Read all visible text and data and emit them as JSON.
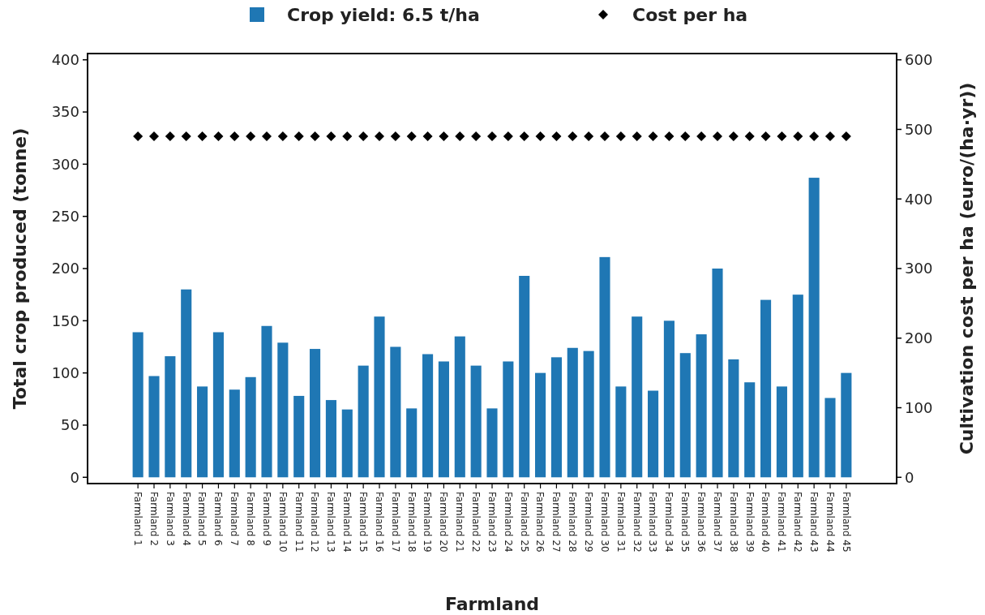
{
  "chart_data": {
    "type": "bar",
    "xlabel": "Farmland",
    "ylabel": "Total crop produced (tonne)",
    "y2label": "Cultivation cost per ha (euro/(ha·yr))",
    "categories": [
      "Farmland 1",
      "Farmland 2",
      "Farmland 3",
      "Farmland 4",
      "Farmland 5",
      "Farmland 6",
      "Farmland 7",
      "Farmland 8",
      "Farmland 9",
      "Farmland 10",
      "Farmland 11",
      "Farmland 12",
      "Farmland 13",
      "Farmland 14",
      "Farmland 15",
      "Farmland 16",
      "Farmland 17",
      "Farmland 18",
      "Farmland 19",
      "Farmland 20",
      "Farmland 21",
      "Farmland 22",
      "Farmland 23",
      "Farmland 24",
      "Farmland 25",
      "Farmland 26",
      "Farmland 27",
      "Farmland 28",
      "Farmland 29",
      "Farmland 30",
      "Farmland 31",
      "Farmland 32",
      "Farmland 33",
      "Farmland 34",
      "Farmland 35",
      "Farmland 36",
      "Farmland 37",
      "Farmland 38",
      "Farmland 39",
      "Farmland 40",
      "Farmland 41",
      "Farmland 42",
      "Farmland 43",
      "Farmland 44",
      "Farmland 45"
    ],
    "series": [
      {
        "name": "Crop yield: 6.5 t/ha",
        "color": "#1f77b4",
        "values": [
          139,
          97,
          116,
          180,
          87,
          139,
          84,
          96,
          145,
          129,
          78,
          123,
          74,
          65,
          107,
          154,
          125,
          66,
          118,
          111,
          135,
          107,
          66,
          111,
          193,
          100,
          115,
          124,
          121,
          211,
          87,
          154,
          83,
          150,
          119,
          137,
          200,
          113,
          91,
          170,
          87,
          175,
          287,
          76,
          100
        ]
      },
      {
        "name": "Cost per ha",
        "type": "scatter",
        "axis": "y2",
        "color": "#000000",
        "marker": "diamond",
        "values": [
          490,
          490,
          490,
          490,
          490,
          490,
          490,
          490,
          490,
          490,
          490,
          490,
          490,
          490,
          490,
          490,
          490,
          490,
          490,
          490,
          490,
          490,
          490,
          490,
          490,
          490,
          490,
          490,
          490,
          490,
          490,
          490,
          490,
          490,
          490,
          490,
          490,
          490,
          490,
          490,
          490,
          490,
          490,
          490,
          490
        ]
      }
    ],
    "ylim": [
      -6,
      406
    ],
    "yticks": [
      0,
      50,
      100,
      150,
      200,
      250,
      300,
      350,
      400
    ],
    "y2lim": [
      -9,
      609
    ],
    "y2ticks": [
      0,
      100,
      200,
      300,
      400,
      500,
      600
    ],
    "legend": "top",
    "grid": false
  }
}
